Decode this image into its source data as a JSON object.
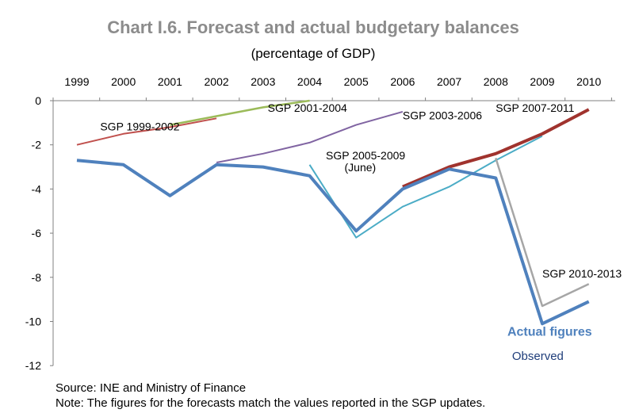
{
  "header": {
    "title": "Chart I.6. Forecast and actual budgetary balances",
    "subtitle": "(percentage of GDP)"
  },
  "footer": {
    "source": "Source: INE and Ministry of Finance",
    "note": "Note: The figures for the forecasts match the values reported in the SGP updates."
  },
  "chart_data": {
    "type": "line",
    "x_ticks": [
      "1999",
      "2000",
      "2001",
      "2002",
      "2003",
      "2004",
      "2005",
      "2006",
      "2007",
      "2008",
      "2009",
      "2010"
    ],
    "y_ticks": [
      "0",
      "-2",
      "-4",
      "-6",
      "-8",
      "-10",
      "-12"
    ],
    "ylim": [
      -12,
      0
    ],
    "grid": false,
    "series": [
      {
        "name": "SGP 1999-2002",
        "color": "#c0504d",
        "width": 2,
        "x": [
          1999,
          2000,
          2001,
          2002
        ],
        "y": [
          -2.0,
          -1.5,
          -1.2,
          -0.8
        ]
      },
      {
        "name": "SGP 2001-2004",
        "color": "#9bbb59",
        "width": 2.5,
        "x": [
          2001,
          2002,
          2003,
          2004
        ],
        "y": [
          -1.1,
          -0.7,
          -0.3,
          0.0
        ]
      },
      {
        "name": "SGP 2003-2006",
        "color": "#8064a2",
        "width": 2,
        "x": [
          2002,
          2003,
          2004,
          2005,
          2006
        ],
        "y": [
          -2.8,
          -2.4,
          -1.9,
          -1.1,
          -0.5
        ]
      },
      {
        "name": "SGP 2005-2009 (June)",
        "color": "#4bacc6",
        "width": 2,
        "x": [
          2004,
          2005,
          2006,
          2007,
          2008,
          2009
        ],
        "y": [
          -2.9,
          -6.2,
          -4.8,
          -3.9,
          -2.7,
          -1.6
        ]
      },
      {
        "name": "SGP 2007-2011",
        "color": "#a0332e",
        "width": 4,
        "x": [
          2006,
          2007,
          2008,
          2009,
          2010
        ],
        "y": [
          -3.9,
          -3.0,
          -2.4,
          -1.5,
          -0.4
        ]
      },
      {
        "name": "SGP 2010-2013",
        "color": "#a6a6a6",
        "width": 2.5,
        "x": [
          2008,
          2009,
          2010
        ],
        "y": [
          -2.6,
          -9.3,
          -8.3
        ]
      },
      {
        "name": "Actual figures",
        "color": "#4f81bd",
        "width": 4,
        "x": [
          1999,
          2000,
          2001,
          2002,
          2003,
          2004,
          2005,
          2006,
          2007,
          2008,
          2009,
          2010
        ],
        "y": [
          -2.7,
          -2.9,
          -4.3,
          -2.9,
          -3.0,
          -3.4,
          -5.9,
          -4.0,
          -3.1,
          -3.5,
          -10.1,
          -9.1
        ]
      }
    ],
    "annotations": [
      {
        "text": "SGP 1999-2002",
        "x": 1999.5,
        "y": -1.35,
        "color": "#000000",
        "size": 14
      },
      {
        "text": "SGP 2001-2004",
        "x": 2003.1,
        "y": -0.5,
        "color": "#000000",
        "size": 14
      },
      {
        "text": "SGP 2003-2006",
        "x": 2006.0,
        "y": -0.85,
        "color": "#000000",
        "size": 14
      },
      {
        "text": "SGP 2005-2009",
        "x": 2004.35,
        "y": -2.65,
        "color": "#000000",
        "size": 14
      },
      {
        "text": "(June)",
        "x": 2004.75,
        "y": -3.2,
        "color": "#000000",
        "size": 14
      },
      {
        "text": "SGP 2007-2011",
        "x": 2008.0,
        "y": -0.5,
        "color": "#000000",
        "size": 14
      },
      {
        "text": "SGP 2010-2013",
        "x": 2009.0,
        "y": -8.0,
        "color": "#000000",
        "size": 14
      },
      {
        "text": "Actual figures",
        "x": 2008.25,
        "y": -10.65,
        "color": "#4f81bd",
        "size": 16,
        "bold": true
      },
      {
        "text": "Observed",
        "x": 2008.35,
        "y": -11.75,
        "color": "#1f3d7a",
        "size": 15
      }
    ]
  }
}
